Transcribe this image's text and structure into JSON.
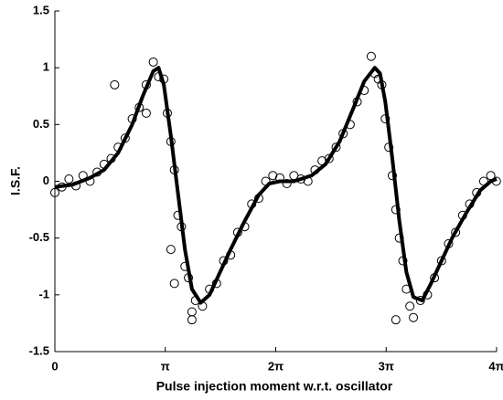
{
  "chart_data": {
    "type": "scatter",
    "xlabel": "Pulse injection moment w.r.t. oscillator",
    "ylabel": "I.S.F.",
    "xlim": [
      0,
      12.56637
    ],
    "ylim": [
      -1.5,
      1.5
    ],
    "xticks": [
      0,
      {
        "value": 3.14159,
        "label": "π"
      },
      {
        "value": 6.28319,
        "label": "2π"
      },
      {
        "value": 9.42478,
        "label": "3π"
      },
      {
        "value": 12.56637,
        "label": "4π"
      }
    ],
    "yticks": [
      -1.5,
      -1,
      -0.5,
      0,
      0.5,
      1,
      1.5
    ],
    "series": [
      {
        "kind": "scatter",
        "color": "#000000",
        "x": [
          0,
          0.2,
          0.4,
          0.6,
          0.8,
          1,
          1.2,
          1.4,
          1.6,
          1.7,
          1.8,
          2,
          2.2,
          2.4,
          2.6,
          2.6,
          2.8,
          2.95,
          3.1,
          3.2,
          3.3,
          3.3,
          3.4,
          3.4,
          3.5,
          3.6,
          3.7,
          3.8,
          3.9,
          3.9,
          4,
          4.2,
          4.4,
          4.6,
          4.8,
          5,
          5.2,
          5.4,
          5.6,
          5.8,
          6,
          6.2,
          6.4,
          6.6,
          6.8,
          7,
          7.2,
          7.4,
          7.6,
          7.8,
          8,
          8.2,
          8.4,
          8.6,
          8.8,
          9,
          9.1,
          9.2,
          9.3,
          9.4,
          9.5,
          9.6,
          9.7,
          9.7,
          9.8,
          9.9,
          10,
          10.1,
          10.2,
          10.4,
          10.6,
          10.8,
          11,
          11.2,
          11.4,
          11.6,
          11.8,
          12,
          12.2,
          12.4,
          12.56
        ],
        "values": [
          -0.1,
          -0.05,
          0.02,
          -0.04,
          0.05,
          0,
          0.08,
          0.15,
          0.2,
          0.85,
          0.3,
          0.38,
          0.55,
          0.65,
          0.85,
          0.6,
          1.05,
          0.92,
          0.9,
          0.6,
          0.35,
          -0.6,
          0.1,
          -0.9,
          -0.3,
          -0.4,
          -0.75,
          -0.85,
          -1.15,
          -1.22,
          -1.05,
          -1.1,
          -0.95,
          -0.9,
          -0.7,
          -0.65,
          -0.45,
          -0.4,
          -0.2,
          -0.15,
          0,
          0.05,
          0.03,
          -0.02,
          0.05,
          0.02,
          0,
          0.1,
          0.18,
          0.2,
          0.3,
          0.42,
          0.5,
          0.7,
          0.8,
          1.1,
          0.95,
          0.9,
          0.85,
          0.55,
          0.3,
          0.05,
          -0.25,
          -1.22,
          -0.5,
          -0.7,
          -0.95,
          -1.1,
          -1.2,
          -1.05,
          -1,
          -0.85,
          -0.7,
          -0.55,
          -0.45,
          -0.3,
          -0.2,
          -0.1,
          0,
          0.05,
          0
        ]
      },
      {
        "kind": "line",
        "color": "#000000",
        "x": [
          0,
          0.5,
          1,
          1.4,
          1.8,
          2.2,
          2.5,
          2.8,
          2.95,
          3.1,
          3.3,
          3.5,
          3.7,
          3.9,
          4.15,
          4.4,
          4.7,
          5,
          5.4,
          5.8,
          6.1,
          6.4,
          6.8,
          7.3,
          7.7,
          8.1,
          8.5,
          8.8,
          9.1,
          9.25,
          9.4,
          9.6,
          9.8,
          10,
          10.2,
          10.45,
          10.7,
          11,
          11.3,
          11.7,
          12.1,
          12.4,
          12.566
        ],
        "values": [
          -0.05,
          -0.03,
          0.03,
          0.1,
          0.25,
          0.5,
          0.75,
          0.97,
          1,
          0.85,
          0.4,
          -0.1,
          -0.6,
          -0.95,
          -1.07,
          -1,
          -0.8,
          -0.6,
          -0.35,
          -0.12,
          -0.02,
          0,
          0,
          0.05,
          0.15,
          0.35,
          0.65,
          0.88,
          1,
          0.95,
          0.7,
          0.2,
          -0.35,
          -0.8,
          -1.02,
          -1.05,
          -0.9,
          -0.7,
          -0.5,
          -0.28,
          -0.08,
          0,
          0.02
        ]
      }
    ]
  }
}
